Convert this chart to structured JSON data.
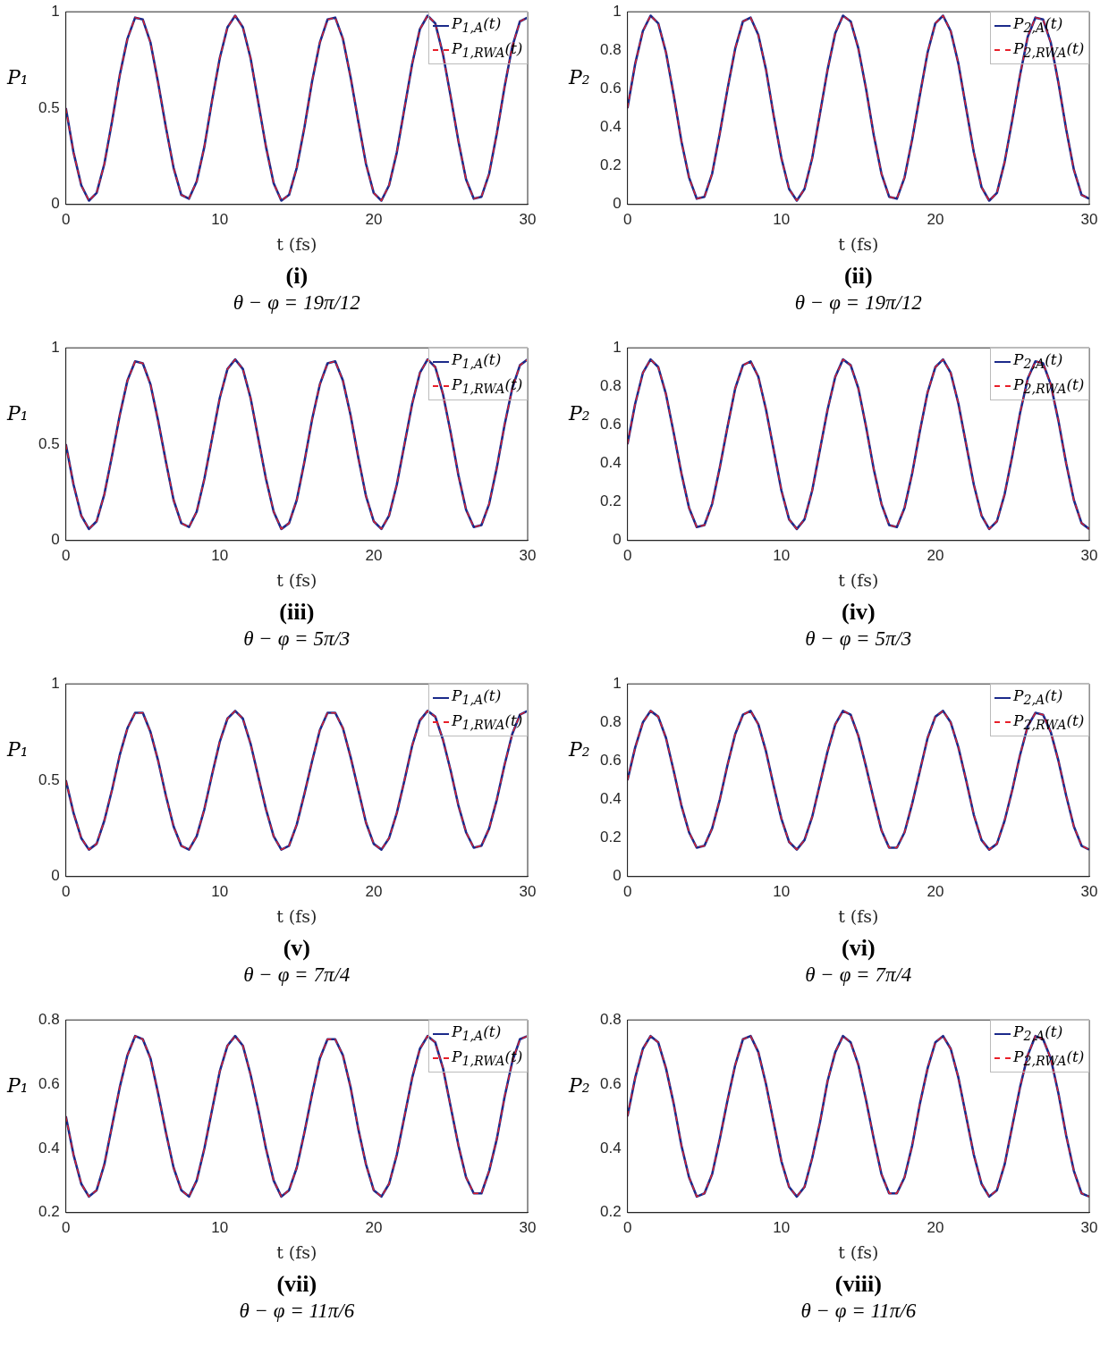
{
  "chart_data": [
    {
      "type": "line",
      "xlabel": "t (fs)",
      "ylabel": "P₁",
      "legend": "top right",
      "xlim": [
        0,
        30
      ],
      "ylim": [
        0,
        1
      ],
      "xticks": [
        0,
        10,
        20,
        30
      ],
      "yticks": [
        0,
        0.5,
        1
      ],
      "annotations": [
        "(i)",
        "θ − φ = 19π/12"
      ],
      "x": [
        0,
        0.5,
        1,
        1.5,
        2,
        2.5,
        3,
        3.5,
        4,
        4.5,
        5,
        5.5,
        6,
        6.5,
        7,
        7.5,
        8,
        8.5,
        9,
        9.5,
        10,
        10.5,
        11,
        11.5,
        12,
        12.5,
        13,
        13.5,
        14,
        14.5,
        15,
        15.5,
        16,
        16.5,
        17,
        17.5,
        18,
        18.5,
        19,
        19.5,
        20,
        20.5,
        21,
        21.5,
        22,
        22.5,
        23,
        23.5,
        24,
        24.5,
        25,
        25.5,
        26,
        26.5,
        27,
        27.5,
        28,
        28.5,
        29,
        29.5,
        30
      ],
      "series": [
        {
          "name": "P$_{1,A}$(t)",
          "color": "#1b2a8a",
          "line_style": "solid",
          "values": [
            0.5,
            0.27,
            0.1,
            0.02,
            0.06,
            0.21,
            0.43,
            0.67,
            0.86,
            0.97,
            0.96,
            0.84,
            0.63,
            0.4,
            0.19,
            0.05,
            0.03,
            0.12,
            0.3,
            0.54,
            0.76,
            0.92,
            0.98,
            0.92,
            0.76,
            0.53,
            0.3,
            0.11,
            0.02,
            0.05,
            0.19,
            0.4,
            0.64,
            0.84,
            0.96,
            0.97,
            0.86,
            0.66,
            0.43,
            0.21,
            0.06,
            0.02,
            0.1,
            0.27,
            0.5,
            0.73,
            0.91,
            0.98,
            0.94,
            0.78,
            0.56,
            0.33,
            0.13,
            0.03,
            0.04,
            0.16,
            0.37,
            0.61,
            0.82,
            0.95,
            0.97
          ]
        },
        {
          "name": "P$_{1,RWA}$(t)",
          "color": "#e8202a",
          "line_style": "dashed",
          "values": [
            0.5,
            0.27,
            0.1,
            0.02,
            0.06,
            0.21,
            0.43,
            0.67,
            0.86,
            0.97,
            0.96,
            0.84,
            0.63,
            0.4,
            0.19,
            0.05,
            0.03,
            0.12,
            0.3,
            0.54,
            0.76,
            0.92,
            0.98,
            0.92,
            0.76,
            0.53,
            0.3,
            0.11,
            0.02,
            0.05,
            0.19,
            0.4,
            0.64,
            0.84,
            0.96,
            0.97,
            0.86,
            0.66,
            0.43,
            0.21,
            0.06,
            0.02,
            0.1,
            0.27,
            0.5,
            0.73,
            0.91,
            0.98,
            0.94,
            0.78,
            0.56,
            0.33,
            0.13,
            0.03,
            0.04,
            0.16,
            0.37,
            0.61,
            0.82,
            0.95,
            0.97
          ]
        }
      ]
    },
    {
      "type": "line",
      "xlabel": "t (fs)",
      "ylabel": "P₂",
      "legend": "top right",
      "xlim": [
        0,
        30
      ],
      "ylim": [
        0,
        1
      ],
      "xticks": [
        0,
        10,
        20,
        30
      ],
      "yticks": [
        0,
        0.2,
        0.4,
        0.6,
        0.8,
        1
      ],
      "annotations": [
        "(ii)",
        "θ − φ = 19π/12"
      ],
      "x": [
        0,
        0.5,
        1,
        1.5,
        2,
        2.5,
        3,
        3.5,
        4,
        4.5,
        5,
        5.5,
        6,
        6.5,
        7,
        7.5,
        8,
        8.5,
        9,
        9.5,
        10,
        10.5,
        11,
        11.5,
        12,
        12.5,
        13,
        13.5,
        14,
        14.5,
        15,
        15.5,
        16,
        16.5,
        17,
        17.5,
        18,
        18.5,
        19,
        19.5,
        20,
        20.5,
        21,
        21.5,
        22,
        22.5,
        23,
        23.5,
        24,
        24.5,
        25,
        25.5,
        26,
        26.5,
        27,
        27.5,
        28,
        28.5,
        29,
        29.5,
        30
      ],
      "series": [
        {
          "name": "P$_{2,A}$(t)",
          "color": "#1b2a8a",
          "line_style": "solid",
          "values": [
            0.5,
            0.73,
            0.9,
            0.98,
            0.94,
            0.79,
            0.57,
            0.33,
            0.14,
            0.03,
            0.04,
            0.16,
            0.37,
            0.6,
            0.81,
            0.95,
            0.97,
            0.88,
            0.7,
            0.46,
            0.24,
            0.08,
            0.02,
            0.08,
            0.24,
            0.47,
            0.7,
            0.89,
            0.98,
            0.95,
            0.81,
            0.6,
            0.36,
            0.16,
            0.04,
            0.03,
            0.14,
            0.34,
            0.57,
            0.79,
            0.94,
            0.98,
            0.9,
            0.73,
            0.5,
            0.27,
            0.09,
            0.02,
            0.06,
            0.22,
            0.44,
            0.67,
            0.87,
            0.97,
            0.96,
            0.84,
            0.63,
            0.39,
            0.18,
            0.05,
            0.03
          ]
        },
        {
          "name": "P$_{2,RWA}$(t)",
          "color": "#e8202a",
          "line_style": "dashed",
          "values": [
            0.5,
            0.73,
            0.9,
            0.98,
            0.94,
            0.79,
            0.57,
            0.33,
            0.14,
            0.03,
            0.04,
            0.16,
            0.37,
            0.6,
            0.81,
            0.95,
            0.97,
            0.88,
            0.7,
            0.46,
            0.24,
            0.08,
            0.02,
            0.08,
            0.24,
            0.47,
            0.7,
            0.89,
            0.98,
            0.95,
            0.81,
            0.6,
            0.36,
            0.16,
            0.04,
            0.03,
            0.14,
            0.34,
            0.57,
            0.79,
            0.94,
            0.98,
            0.9,
            0.73,
            0.5,
            0.27,
            0.09,
            0.02,
            0.06,
            0.22,
            0.44,
            0.67,
            0.87,
            0.97,
            0.96,
            0.84,
            0.63,
            0.39,
            0.18,
            0.05,
            0.03
          ]
        }
      ]
    },
    {
      "type": "line",
      "xlabel": "t (fs)",
      "ylabel": "P₁",
      "legend": "top right",
      "xlim": [
        0,
        30
      ],
      "ylim": [
        0,
        1
      ],
      "xticks": [
        0,
        10,
        20,
        30
      ],
      "yticks": [
        0,
        0.5,
        1
      ],
      "annotations": [
        "(iii)",
        "θ − φ = 5π/3"
      ],
      "x": [
        0,
        0.5,
        1,
        1.5,
        2,
        2.5,
        3,
        3.5,
        4,
        4.5,
        5,
        5.5,
        6,
        6.5,
        7,
        7.5,
        8,
        8.5,
        9,
        9.5,
        10,
        10.5,
        11,
        11.5,
        12,
        12.5,
        13,
        13.5,
        14,
        14.5,
        15,
        15.5,
        16,
        16.5,
        17,
        17.5,
        18,
        18.5,
        19,
        19.5,
        20,
        20.5,
        21,
        21.5,
        22,
        22.5,
        23,
        23.5,
        24,
        24.5,
        25,
        25.5,
        26,
        26.5,
        27,
        27.5,
        28,
        28.5,
        29,
        29.5,
        30
      ],
      "series": [
        {
          "name": "P$_{1,A}$(t)",
          "color": "#1b2a8a",
          "line_style": "solid",
          "values": [
            0.5,
            0.29,
            0.13,
            0.06,
            0.1,
            0.24,
            0.44,
            0.65,
            0.83,
            0.93,
            0.92,
            0.81,
            0.62,
            0.41,
            0.21,
            0.09,
            0.07,
            0.15,
            0.32,
            0.53,
            0.74,
            0.89,
            0.94,
            0.89,
            0.74,
            0.53,
            0.32,
            0.15,
            0.06,
            0.09,
            0.21,
            0.41,
            0.63,
            0.81,
            0.92,
            0.93,
            0.83,
            0.65,
            0.43,
            0.23,
            0.1,
            0.06,
            0.13,
            0.29,
            0.5,
            0.71,
            0.87,
            0.94,
            0.9,
            0.76,
            0.56,
            0.34,
            0.16,
            0.07,
            0.08,
            0.19,
            0.38,
            0.6,
            0.79,
            0.91,
            0.94
          ]
        },
        {
          "name": "P$_{1,RWA}$(t)",
          "color": "#e8202a",
          "line_style": "dashed",
          "values": [
            0.5,
            0.29,
            0.13,
            0.06,
            0.1,
            0.24,
            0.44,
            0.65,
            0.83,
            0.93,
            0.92,
            0.81,
            0.62,
            0.41,
            0.21,
            0.09,
            0.07,
            0.15,
            0.32,
            0.53,
            0.74,
            0.89,
            0.94,
            0.89,
            0.74,
            0.53,
            0.32,
            0.15,
            0.06,
            0.09,
            0.21,
            0.41,
            0.63,
            0.81,
            0.92,
            0.93,
            0.83,
            0.65,
            0.43,
            0.23,
            0.1,
            0.06,
            0.13,
            0.29,
            0.5,
            0.71,
            0.87,
            0.94,
            0.9,
            0.76,
            0.56,
            0.34,
            0.16,
            0.07,
            0.08,
            0.19,
            0.38,
            0.6,
            0.79,
            0.91,
            0.94
          ]
        }
      ]
    },
    {
      "type": "line",
      "xlabel": "t (fs)",
      "ylabel": "P₂",
      "legend": "top right",
      "xlim": [
        0,
        30
      ],
      "ylim": [
        0,
        1
      ],
      "xticks": [
        0,
        10,
        20,
        30
      ],
      "yticks": [
        0,
        0.2,
        0.4,
        0.6,
        0.8,
        1
      ],
      "annotations": [
        "(iv)",
        "θ − φ = 5π/3"
      ],
      "x": [
        0,
        0.5,
        1,
        1.5,
        2,
        2.5,
        3,
        3.5,
        4,
        4.5,
        5,
        5.5,
        6,
        6.5,
        7,
        7.5,
        8,
        8.5,
        9,
        9.5,
        10,
        10.5,
        11,
        11.5,
        12,
        12.5,
        13,
        13.5,
        14,
        14.5,
        15,
        15.5,
        16,
        16.5,
        17,
        17.5,
        18,
        18.5,
        19,
        19.5,
        20,
        20.5,
        21,
        21.5,
        22,
        22.5,
        23,
        23.5,
        24,
        24.5,
        25,
        25.5,
        26,
        26.5,
        27,
        27.5,
        28,
        28.5,
        29,
        29.5,
        30
      ],
      "series": [
        {
          "name": "P$_{2,A}$(t)",
          "color": "#1b2a8a",
          "line_style": "solid",
          "values": [
            0.5,
            0.71,
            0.87,
            0.94,
            0.9,
            0.76,
            0.56,
            0.35,
            0.17,
            0.07,
            0.08,
            0.19,
            0.38,
            0.59,
            0.79,
            0.91,
            0.93,
            0.85,
            0.68,
            0.47,
            0.26,
            0.11,
            0.06,
            0.11,
            0.26,
            0.47,
            0.68,
            0.85,
            0.94,
            0.91,
            0.79,
            0.59,
            0.37,
            0.19,
            0.08,
            0.07,
            0.17,
            0.35,
            0.57,
            0.77,
            0.9,
            0.94,
            0.87,
            0.71,
            0.5,
            0.29,
            0.13,
            0.06,
            0.1,
            0.24,
            0.44,
            0.66,
            0.84,
            0.93,
            0.92,
            0.81,
            0.62,
            0.4,
            0.21,
            0.09,
            0.06
          ]
        },
        {
          "name": "P$_{2,RWA}$(t)",
          "color": "#e8202a",
          "line_style": "dashed",
          "values": [
            0.5,
            0.71,
            0.87,
            0.94,
            0.9,
            0.76,
            0.56,
            0.35,
            0.17,
            0.07,
            0.08,
            0.19,
            0.38,
            0.59,
            0.79,
            0.91,
            0.93,
            0.85,
            0.68,
            0.47,
            0.26,
            0.11,
            0.06,
            0.11,
            0.26,
            0.47,
            0.68,
            0.85,
            0.94,
            0.91,
            0.79,
            0.59,
            0.37,
            0.19,
            0.08,
            0.07,
            0.17,
            0.35,
            0.57,
            0.77,
            0.9,
            0.94,
            0.87,
            0.71,
            0.5,
            0.29,
            0.13,
            0.06,
            0.1,
            0.24,
            0.44,
            0.66,
            0.84,
            0.93,
            0.92,
            0.81,
            0.62,
            0.4,
            0.21,
            0.09,
            0.06
          ]
        }
      ]
    },
    {
      "type": "line",
      "xlabel": "t (fs)",
      "ylabel": "P₁",
      "legend": "top right",
      "xlim": [
        0,
        30
      ],
      "ylim": [
        0,
        1
      ],
      "xticks": [
        0,
        10,
        20,
        30
      ],
      "yticks": [
        0,
        0.5,
        1
      ],
      "annotations": [
        "(v)",
        "θ − φ = 7π/4"
      ],
      "x": [
        0,
        0.5,
        1,
        1.5,
        2,
        2.5,
        3,
        3.5,
        4,
        4.5,
        5,
        5.5,
        6,
        6.5,
        7,
        7.5,
        8,
        8.5,
        9,
        9.5,
        10,
        10.5,
        11,
        11.5,
        12,
        12.5,
        13,
        13.5,
        14,
        14.5,
        15,
        15.5,
        16,
        16.5,
        17,
        17.5,
        18,
        18.5,
        19,
        19.5,
        20,
        20.5,
        21,
        21.5,
        22,
        22.5,
        23,
        23.5,
        24,
        24.5,
        25,
        25.5,
        26,
        26.5,
        27,
        27.5,
        28,
        28.5,
        29,
        29.5,
        30
      ],
      "series": [
        {
          "name": "P$_{1,A}$(t)",
          "color": "#1b2a8a",
          "line_style": "solid",
          "values": [
            0.5,
            0.33,
            0.2,
            0.14,
            0.17,
            0.29,
            0.45,
            0.63,
            0.77,
            0.85,
            0.85,
            0.75,
            0.6,
            0.42,
            0.26,
            0.16,
            0.14,
            0.21,
            0.35,
            0.53,
            0.7,
            0.82,
            0.86,
            0.82,
            0.69,
            0.52,
            0.35,
            0.21,
            0.14,
            0.16,
            0.27,
            0.43,
            0.6,
            0.76,
            0.85,
            0.85,
            0.77,
            0.62,
            0.45,
            0.28,
            0.17,
            0.14,
            0.2,
            0.33,
            0.5,
            0.68,
            0.81,
            0.86,
            0.83,
            0.71,
            0.55,
            0.37,
            0.23,
            0.15,
            0.16,
            0.25,
            0.4,
            0.58,
            0.74,
            0.84,
            0.86
          ]
        },
        {
          "name": "P$_{1,RWA}$(t)",
          "color": "#e8202a",
          "line_style": "dashed",
          "values": [
            0.5,
            0.33,
            0.2,
            0.14,
            0.17,
            0.29,
            0.45,
            0.63,
            0.77,
            0.85,
            0.85,
            0.75,
            0.6,
            0.42,
            0.26,
            0.16,
            0.14,
            0.21,
            0.35,
            0.53,
            0.7,
            0.82,
            0.86,
            0.82,
            0.69,
            0.52,
            0.35,
            0.21,
            0.14,
            0.16,
            0.27,
            0.43,
            0.6,
            0.76,
            0.85,
            0.85,
            0.77,
            0.62,
            0.45,
            0.28,
            0.17,
            0.14,
            0.2,
            0.33,
            0.5,
            0.68,
            0.81,
            0.86,
            0.83,
            0.71,
            0.55,
            0.37,
            0.23,
            0.15,
            0.16,
            0.25,
            0.4,
            0.58,
            0.74,
            0.84,
            0.86
          ]
        }
      ]
    },
    {
      "type": "line",
      "xlabel": "t (fs)",
      "ylabel": "P₂",
      "legend": "top right",
      "xlim": [
        0,
        30
      ],
      "ylim": [
        0,
        1
      ],
      "xticks": [
        0,
        10,
        20,
        30
      ],
      "yticks": [
        0,
        0.2,
        0.4,
        0.6,
        0.8,
        1
      ],
      "annotations": [
        "(vi)",
        "θ − φ = 7π/4"
      ],
      "x": [
        0,
        0.5,
        1,
        1.5,
        2,
        2.5,
        3,
        3.5,
        4,
        4.5,
        5,
        5.5,
        6,
        6.5,
        7,
        7.5,
        8,
        8.5,
        9,
        9.5,
        10,
        10.5,
        11,
        11.5,
        12,
        12.5,
        13,
        13.5,
        14,
        14.5,
        15,
        15.5,
        16,
        16.5,
        17,
        17.5,
        18,
        18.5,
        19,
        19.5,
        20,
        20.5,
        21,
        21.5,
        22,
        22.5,
        23,
        23.5,
        24,
        24.5,
        25,
        25.5,
        26,
        26.5,
        27,
        27.5,
        28,
        28.5,
        29,
        29.5,
        30
      ],
      "series": [
        {
          "name": "P$_{2,A}$(t)",
          "color": "#1b2a8a",
          "line_style": "solid",
          "values": [
            0.5,
            0.67,
            0.8,
            0.86,
            0.83,
            0.72,
            0.55,
            0.37,
            0.23,
            0.15,
            0.16,
            0.25,
            0.4,
            0.58,
            0.74,
            0.84,
            0.86,
            0.79,
            0.65,
            0.47,
            0.3,
            0.18,
            0.14,
            0.19,
            0.31,
            0.48,
            0.65,
            0.79,
            0.86,
            0.84,
            0.73,
            0.57,
            0.4,
            0.24,
            0.15,
            0.15,
            0.23,
            0.38,
            0.55,
            0.72,
            0.83,
            0.86,
            0.8,
            0.67,
            0.5,
            0.32,
            0.19,
            0.14,
            0.17,
            0.29,
            0.45,
            0.63,
            0.78,
            0.85,
            0.84,
            0.75,
            0.6,
            0.42,
            0.26,
            0.16,
            0.14
          ]
        },
        {
          "name": "P$_{2,RWA}$(t)",
          "color": "#e8202a",
          "line_style": "dashed",
          "values": [
            0.5,
            0.67,
            0.8,
            0.86,
            0.83,
            0.72,
            0.55,
            0.37,
            0.23,
            0.15,
            0.16,
            0.25,
            0.4,
            0.58,
            0.74,
            0.84,
            0.86,
            0.79,
            0.65,
            0.47,
            0.3,
            0.18,
            0.14,
            0.19,
            0.31,
            0.48,
            0.65,
            0.79,
            0.86,
            0.84,
            0.73,
            0.57,
            0.4,
            0.24,
            0.15,
            0.15,
            0.23,
            0.38,
            0.55,
            0.72,
            0.83,
            0.86,
            0.8,
            0.67,
            0.5,
            0.32,
            0.19,
            0.14,
            0.17,
            0.29,
            0.45,
            0.63,
            0.78,
            0.85,
            0.84,
            0.75,
            0.6,
            0.42,
            0.26,
            0.16,
            0.14
          ]
        }
      ]
    },
    {
      "type": "line",
      "xlabel": "t (fs)",
      "ylabel": "P₁",
      "legend": "top right",
      "xlim": [
        0,
        30
      ],
      "ylim": [
        0.2,
        0.8
      ],
      "xticks": [
        0,
        10,
        20,
        30
      ],
      "yticks": [
        0.2,
        0.4,
        0.6,
        0.8
      ],
      "annotations": [
        "(vii)",
        "θ − φ = 11π/6"
      ],
      "x": [
        0,
        0.5,
        1,
        1.5,
        2,
        2.5,
        3,
        3.5,
        4,
        4.5,
        5,
        5.5,
        6,
        6.5,
        7,
        7.5,
        8,
        8.5,
        9,
        9.5,
        10,
        10.5,
        11,
        11.5,
        12,
        12.5,
        13,
        13.5,
        14,
        14.5,
        15,
        15.5,
        16,
        16.5,
        17,
        17.5,
        18,
        18.5,
        19,
        19.5,
        20,
        20.5,
        21,
        21.5,
        22,
        22.5,
        23,
        23.5,
        24,
        24.5,
        25,
        25.5,
        26,
        26.5,
        27,
        27.5,
        28,
        28.5,
        29,
        29.5,
        30
      ],
      "series": [
        {
          "name": "P$_{1,A}$(t)",
          "color": "#1b2a8a",
          "line_style": "solid",
          "values": [
            0.5,
            0.38,
            0.29,
            0.25,
            0.27,
            0.35,
            0.47,
            0.59,
            0.69,
            0.75,
            0.74,
            0.68,
            0.57,
            0.45,
            0.34,
            0.27,
            0.25,
            0.3,
            0.4,
            0.52,
            0.64,
            0.72,
            0.75,
            0.72,
            0.63,
            0.52,
            0.4,
            0.3,
            0.25,
            0.27,
            0.34,
            0.45,
            0.57,
            0.68,
            0.74,
            0.74,
            0.69,
            0.59,
            0.46,
            0.35,
            0.27,
            0.25,
            0.29,
            0.38,
            0.5,
            0.62,
            0.71,
            0.75,
            0.73,
            0.65,
            0.53,
            0.41,
            0.31,
            0.26,
            0.26,
            0.33,
            0.43,
            0.56,
            0.67,
            0.74,
            0.75
          ]
        },
        {
          "name": "P$_{1,RWA}$(t)",
          "color": "#e8202a",
          "line_style": "dashed",
          "values": [
            0.5,
            0.38,
            0.29,
            0.25,
            0.27,
            0.35,
            0.47,
            0.59,
            0.69,
            0.75,
            0.74,
            0.68,
            0.57,
            0.45,
            0.34,
            0.27,
            0.25,
            0.3,
            0.4,
            0.52,
            0.64,
            0.72,
            0.75,
            0.72,
            0.63,
            0.52,
            0.4,
            0.3,
            0.25,
            0.27,
            0.34,
            0.45,
            0.57,
            0.68,
            0.74,
            0.74,
            0.69,
            0.59,
            0.46,
            0.35,
            0.27,
            0.25,
            0.29,
            0.38,
            0.5,
            0.62,
            0.71,
            0.75,
            0.73,
            0.65,
            0.53,
            0.41,
            0.31,
            0.26,
            0.26,
            0.33,
            0.43,
            0.56,
            0.67,
            0.74,
            0.75
          ]
        }
      ]
    },
    {
      "type": "line",
      "xlabel": "t (fs)",
      "ylabel": "P₂",
      "legend": "top right",
      "xlim": [
        0,
        30
      ],
      "ylim": [
        0.2,
        0.8
      ],
      "xticks": [
        0,
        10,
        20,
        30
      ],
      "yticks": [
        0.2,
        0.4,
        0.6,
        0.8
      ],
      "annotations": [
        "(viii)",
        "θ − φ = 11π/6"
      ],
      "x": [
        0,
        0.5,
        1,
        1.5,
        2,
        2.5,
        3,
        3.5,
        4,
        4.5,
        5,
        5.5,
        6,
        6.5,
        7,
        7.5,
        8,
        8.5,
        9,
        9.5,
        10,
        10.5,
        11,
        11.5,
        12,
        12.5,
        13,
        13.5,
        14,
        14.5,
        15,
        15.5,
        16,
        16.5,
        17,
        17.5,
        18,
        18.5,
        19,
        19.5,
        20,
        20.5,
        21,
        21.5,
        22,
        22.5,
        23,
        23.5,
        24,
        24.5,
        25,
        25.5,
        26,
        26.5,
        27,
        27.5,
        28,
        28.5,
        29,
        29.5,
        30
      ],
      "series": [
        {
          "name": "P$_{2,A}$(t)",
          "color": "#1b2a8a",
          "line_style": "solid",
          "values": [
            0.5,
            0.62,
            0.71,
            0.75,
            0.73,
            0.65,
            0.54,
            0.41,
            0.31,
            0.25,
            0.26,
            0.32,
            0.43,
            0.55,
            0.66,
            0.74,
            0.75,
            0.7,
            0.6,
            0.48,
            0.36,
            0.28,
            0.25,
            0.28,
            0.37,
            0.48,
            0.61,
            0.7,
            0.75,
            0.73,
            0.66,
            0.55,
            0.43,
            0.32,
            0.26,
            0.26,
            0.31,
            0.41,
            0.54,
            0.65,
            0.73,
            0.75,
            0.71,
            0.62,
            0.5,
            0.38,
            0.29,
            0.25,
            0.27,
            0.35,
            0.47,
            0.59,
            0.69,
            0.75,
            0.74,
            0.68,
            0.57,
            0.44,
            0.33,
            0.26,
            0.25
          ]
        },
        {
          "name": "P$_{2,RWA}$(t)",
          "color": "#e8202a",
          "line_style": "dashed",
          "values": [
            0.5,
            0.62,
            0.71,
            0.75,
            0.73,
            0.65,
            0.54,
            0.41,
            0.31,
            0.25,
            0.26,
            0.32,
            0.43,
            0.55,
            0.66,
            0.74,
            0.75,
            0.7,
            0.6,
            0.48,
            0.36,
            0.28,
            0.25,
            0.28,
            0.37,
            0.48,
            0.61,
            0.7,
            0.75,
            0.73,
            0.66,
            0.55,
            0.43,
            0.32,
            0.26,
            0.26,
            0.31,
            0.41,
            0.54,
            0.65,
            0.73,
            0.75,
            0.71,
            0.62,
            0.5,
            0.38,
            0.29,
            0.25,
            0.27,
            0.35,
            0.47,
            0.59,
            0.69,
            0.75,
            0.74,
            0.68,
            0.57,
            0.44,
            0.33,
            0.26,
            0.25
          ]
        }
      ]
    }
  ]
}
